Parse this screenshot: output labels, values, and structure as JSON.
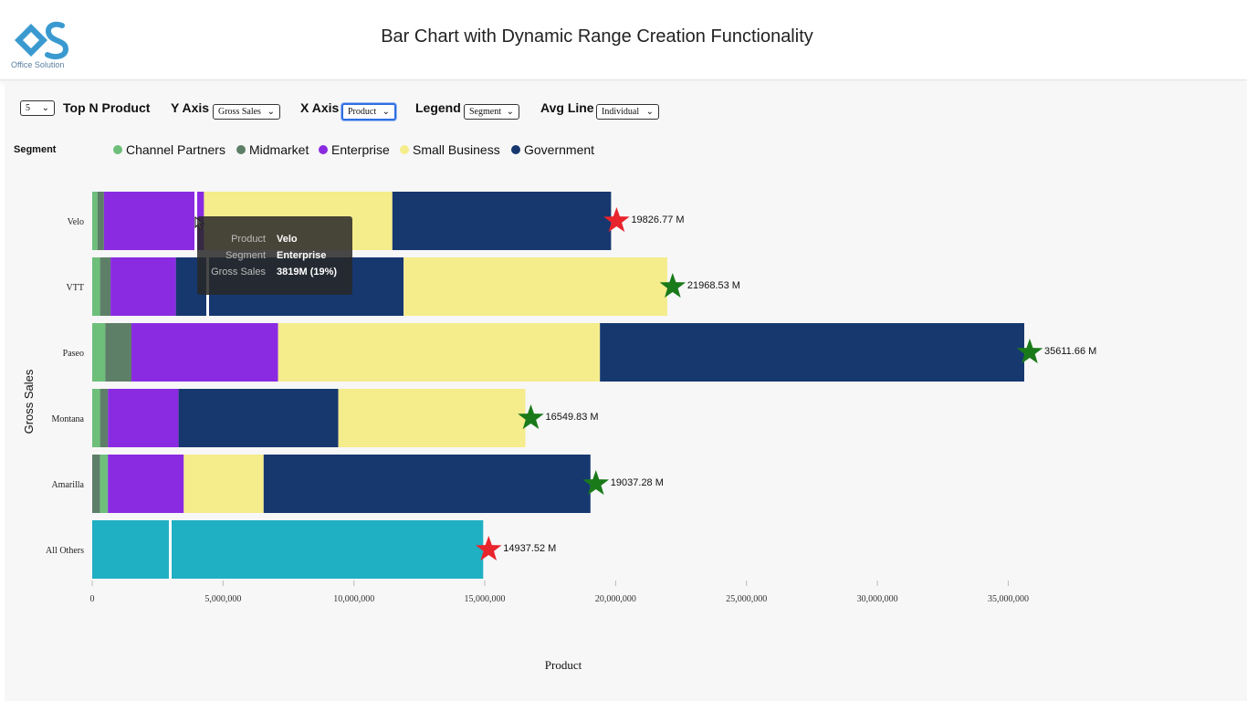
{
  "header": {
    "title": "Bar Chart with Dynamic Range Creation Functionality",
    "logo_caption": "Office Solution"
  },
  "controls": {
    "top_n": {
      "value": "5",
      "label": "Top N Product"
    },
    "y_axis": {
      "label": "Y Axis",
      "value": "Gross Sales"
    },
    "x_axis": {
      "label": "X Axis",
      "value": "Product"
    },
    "legend": {
      "label": "Legend",
      "value": "Segment"
    },
    "avg_line": {
      "label": "Avg Line",
      "value": "Individual"
    }
  },
  "legend": {
    "title": "Segment",
    "items": [
      {
        "name": "Channel Partners",
        "color": "#6dbf7a"
      },
      {
        "name": "Midmarket",
        "color": "#5e7f67"
      },
      {
        "name": "Enterprise",
        "color": "#8a2be2"
      },
      {
        "name": "Small Business",
        "color": "#f5ec8c"
      },
      {
        "name": "Government",
        "color": "#16386f"
      }
    ]
  },
  "tooltip": {
    "rows": [
      {
        "key": "Product",
        "value": "Velo"
      },
      {
        "key": "Segment",
        "value": "Enterprise"
      },
      {
        "key": "Gross Sales",
        "value": "3819M (19%)"
      }
    ]
  },
  "chart_data": {
    "type": "bar",
    "orientation": "horizontal",
    "stacked": true,
    "categories": [
      "Velo",
      "VTT",
      "Paseo",
      "Montana",
      "Amarilla",
      "All Others"
    ],
    "xlabel": "Product",
    "ylabel": "Gross Sales",
    "xlim": [
      0,
      35611660
    ],
    "xticks": [
      0,
      5000000,
      10000000,
      15000000,
      20000000,
      25000000,
      30000000,
      35000000
    ],
    "xtick_labels": [
      "0",
      "5,000,000",
      "10,000,000",
      "15,000,000",
      "20,000,000",
      "25,000,000",
      "30,000,000",
      "35,000,000"
    ],
    "rows": [
      {
        "category": "Velo",
        "segments": [
          {
            "segment": "Channel Partners",
            "value": 200000,
            "color": "#6dbf7a"
          },
          {
            "segment": "Midmarket",
            "value": 250000,
            "color": "#5e7f67"
          },
          {
            "segment": "Enterprise",
            "value": 3819000,
            "color": "#8a2be2"
          },
          {
            "segment": "Small Business",
            "value": 7200000,
            "color": "#f5ec8c"
          },
          {
            "segment": "Government",
            "value": 8357770,
            "color": "#16386f"
          }
        ]
      },
      {
        "category": "VTT",
        "segments": [
          {
            "segment": "Channel Partners",
            "value": 300000,
            "color": "#6dbf7a"
          },
          {
            "segment": "Midmarket",
            "value": 400000,
            "color": "#5e7f67"
          },
          {
            "segment": "Enterprise",
            "value": 2500000,
            "color": "#8a2be2"
          },
          {
            "segment": "Government",
            "value": 8700000,
            "color": "#16386f"
          },
          {
            "segment": "Small Business",
            "value": 10068530,
            "color": "#f5ec8c"
          }
        ]
      },
      {
        "category": "Paseo",
        "segments": [
          {
            "segment": "Channel Partners",
            "value": 500000,
            "color": "#6dbf7a"
          },
          {
            "segment": "Midmarket",
            "value": 1000000,
            "color": "#5e7f67"
          },
          {
            "segment": "Enterprise",
            "value": 5600000,
            "color": "#8a2be2"
          },
          {
            "segment": "Small Business",
            "value": 12300000,
            "color": "#f5ec8c"
          },
          {
            "segment": "Government",
            "value": 16211660,
            "color": "#16386f"
          }
        ]
      },
      {
        "category": "Montana",
        "segments": [
          {
            "segment": "Channel Partners",
            "value": 300000,
            "color": "#6dbf7a"
          },
          {
            "segment": "Midmarket",
            "value": 300000,
            "color": "#5e7f67"
          },
          {
            "segment": "Enterprise",
            "value": 2700000,
            "color": "#8a2be2"
          },
          {
            "segment": "Government",
            "value": 6100000,
            "color": "#16386f"
          },
          {
            "segment": "Small Business",
            "value": 7149830,
            "color": "#f5ec8c"
          }
        ]
      },
      {
        "category": "Amarilla",
        "segments": [
          {
            "segment": "Midmarket",
            "value": 300000,
            "color": "#5e7f67"
          },
          {
            "segment": "Channel Partners",
            "value": 300000,
            "color": "#6dbf7a"
          },
          {
            "segment": "Enterprise",
            "value": 2900000,
            "color": "#8a2be2"
          },
          {
            "segment": "Small Business",
            "value": 3050000,
            "color": "#f5ec8c"
          },
          {
            "segment": "Government",
            "value": 12487280,
            "color": "#16386f"
          }
        ]
      },
      {
        "category": "All Others",
        "segments": [
          {
            "segment": "All Others",
            "value": 14937520,
            "color": "#20b0c4"
          }
        ]
      }
    ],
    "totals": [
      {
        "category": "Velo",
        "value": 19826770,
        "label": "19826.77 M",
        "marker_color": "#e8242c"
      },
      {
        "category": "VTT",
        "value": 21968530,
        "label": "21968.53 M",
        "marker_color": "#1a7a1a"
      },
      {
        "category": "Paseo",
        "value": 35611660,
        "label": "35611.66 M",
        "marker_color": "#1a7a1a"
      },
      {
        "category": "Montana",
        "value": 16549830,
        "label": "16549.83 M",
        "marker_color": "#1a7a1a"
      },
      {
        "category": "Amarilla",
        "value": 19037280,
        "label": "19037.28 M",
        "marker_color": "#1a7a1a"
      },
      {
        "category": "All Others",
        "value": 14937520,
        "label": "14937.52 M",
        "marker_color": "#e8242c"
      }
    ]
  }
}
